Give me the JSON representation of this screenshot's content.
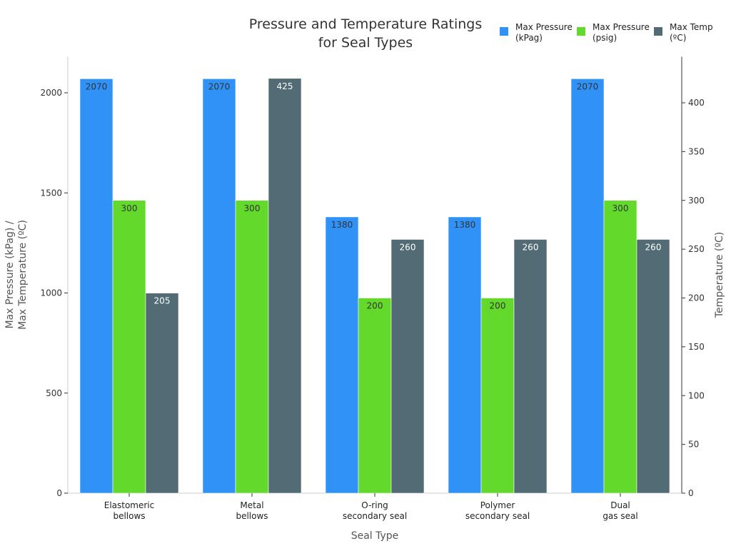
{
  "chart_data": {
    "type": "bar",
    "title": "Pressure and Temperature Ratings\nfor Seal Types",
    "xlabel": "Seal Type",
    "ylabel": "Max Pressure (kPag) /\nMax Temperature (ºC)",
    "ylabel_right": "Temperature (ºC)",
    "categories": [
      "Elastomeric\nbellows",
      "Metal\nbellows",
      "O-ring\nsecondary seal",
      "Polymer\nsecondary seal",
      "Dual\ngas seal"
    ],
    "series": [
      {
        "name": "Max Pressure\n(kPag)",
        "values": [
          2070,
          2070,
          1380,
          1380,
          2070
        ],
        "color": "#3091f7",
        "axis": "left",
        "label_color": "#333333"
      },
      {
        "name": "Max Pressure\n(psig)",
        "values": [
          300,
          300,
          200,
          200,
          300
        ],
        "color": "#62d92b",
        "axis": "right",
        "label_color": "#333333"
      },
      {
        "name": "Max Temp\n(ºC)",
        "values": [
          205,
          425,
          260,
          260,
          260
        ],
        "color": "#526b75",
        "axis": "right",
        "label_color": "#ffffff"
      }
    ],
    "ylim": [
      0,
      2180
    ],
    "ylim_right": [
      0,
      445
    ],
    "yticks": [
      0,
      500,
      1000,
      1500,
      2000
    ],
    "yticks_right": [
      0,
      50,
      100,
      150,
      200,
      250,
      300,
      350,
      400
    ],
    "grid": false,
    "legend_position": "top-right"
  }
}
